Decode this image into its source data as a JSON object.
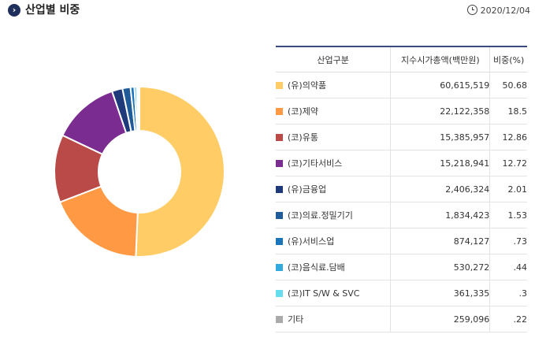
{
  "header": {
    "title": "산업별 비중",
    "title_icon": "chevron-right-icon",
    "date": "2020/12/04",
    "date_icon": "clock-icon"
  },
  "table": {
    "headers": [
      "산업구분",
      "지수시가총액(백만원)",
      "비중(%)"
    ]
  },
  "chart_data": {
    "type": "pie",
    "categories": [
      "(유)의약품",
      "(코)제약",
      "(코)유통",
      "(코)기타서비스",
      "(유)금융업",
      "(코)의료.정밀기기",
      "(유)서비스업",
      "(코)음식료.담배",
      "(코)IT S/W & SVC",
      "기타"
    ],
    "market_cap": [
      "60,615,519",
      "22,122,358",
      "15,385,957",
      "15,218,941",
      "2,406,324",
      "1,834,423",
      "874,127",
      "530,272",
      "361,335",
      "259,096"
    ],
    "pct_text": [
      "50.68",
      "18.5",
      "12.86",
      "12.72",
      "2.01",
      "1.53",
      ".73",
      ".44",
      ".3",
      ".22"
    ],
    "values": [
      50.68,
      18.5,
      12.86,
      12.72,
      2.01,
      1.53,
      0.73,
      0.44,
      0.3,
      0.22
    ],
    "colors": [
      "#ffcc66",
      "#ff9944",
      "#b94a48",
      "#7b2c91",
      "#1f3a7a",
      "#1f5a99",
      "#1a75bb",
      "#33aadd",
      "#66ddee",
      "#aaaaaa"
    ]
  }
}
